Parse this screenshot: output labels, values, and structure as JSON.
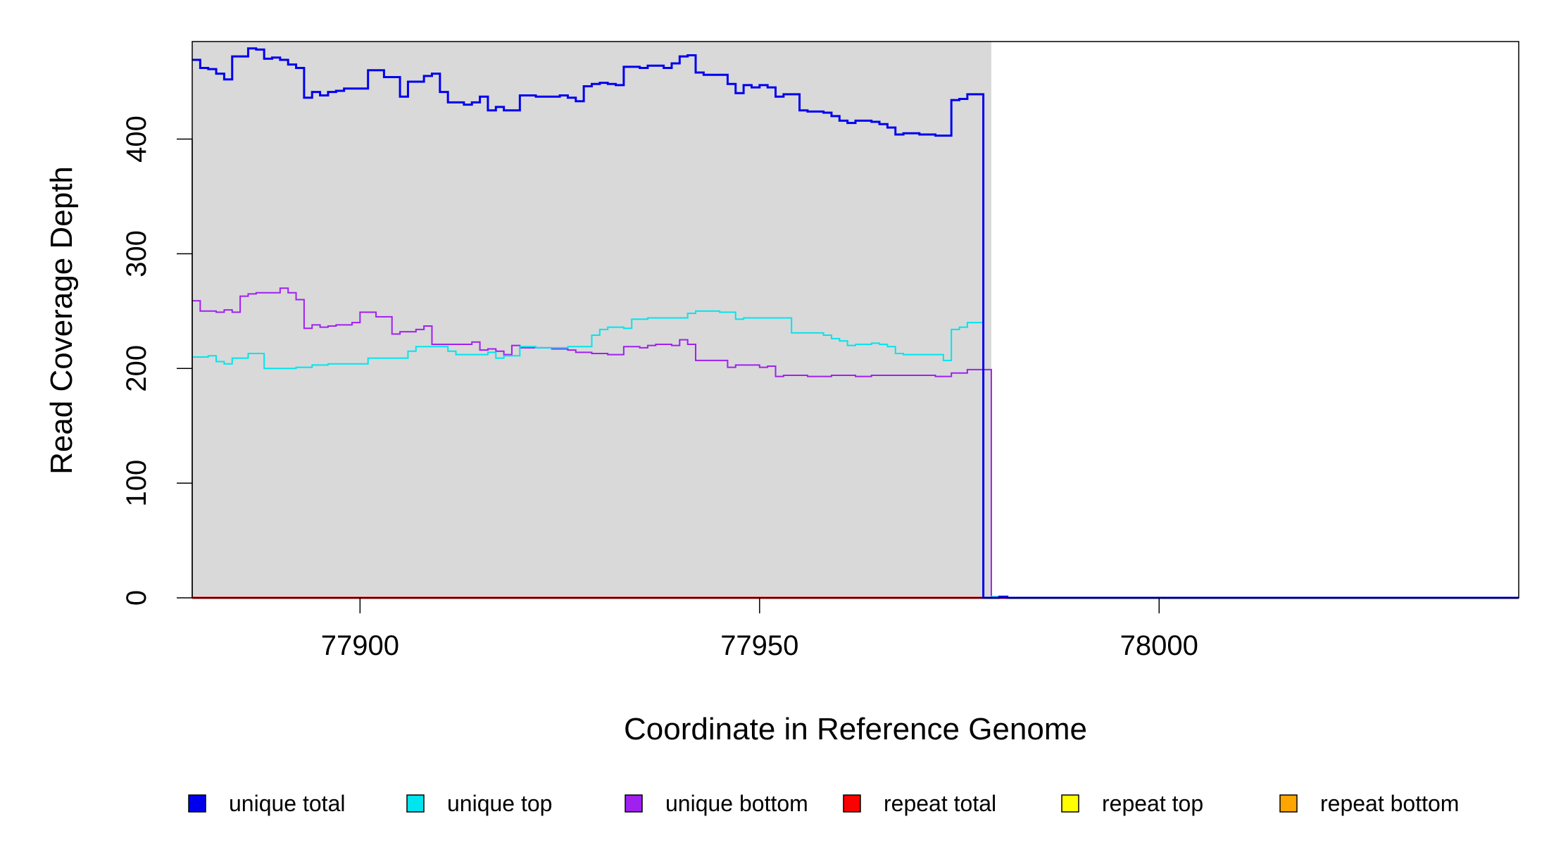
{
  "chart_data": {
    "type": "line",
    "title": "",
    "xlabel": "Coordinate in Reference Genome",
    "ylabel": "Read Coverage Depth",
    "xlim": [
      77879,
      78045
    ],
    "ylim": [
      0,
      485
    ],
    "x_ticks": [
      77900,
      77950,
      78000
    ],
    "x_tick_labels": [
      "77900",
      "77950",
      "78000"
    ],
    "y_ticks": [
      0,
      100,
      200,
      300,
      400
    ],
    "y_tick_labels": [
      "0",
      "100",
      "200",
      "300",
      "400"
    ],
    "grid": false,
    "shaded_region": {
      "x_start": 77879,
      "x_end": 77979,
      "color": "#d9d9d9"
    },
    "legend_position": "bottom",
    "series": [
      {
        "name": "unique total",
        "color": "#0000ee",
        "x": [
          77879,
          77880,
          77881,
          77882,
          77883,
          77884,
          77885,
          77886,
          77887,
          77888,
          77889,
          77890,
          77891,
          77892,
          77893,
          77894,
          77895,
          77896,
          77897,
          77898,
          77899,
          77900,
          77901,
          77902,
          77903,
          77904,
          77905,
          77906,
          77907,
          77908,
          77909,
          77910,
          77911,
          77912,
          77913,
          77914,
          77915,
          77916,
          77917,
          77918,
          77919,
          77920,
          77921,
          77922,
          77923,
          77924,
          77925,
          77926,
          77927,
          77928,
          77929,
          77930,
          77931,
          77932,
          77933,
          77934,
          77935,
          77936,
          77937,
          77938,
          77939,
          77940,
          77941,
          77942,
          77943,
          77944,
          77945,
          77946,
          77947,
          77948,
          77949,
          77950,
          77951,
          77952,
          77953,
          77954,
          77955,
          77956,
          77957,
          77958,
          77959,
          77960,
          77961,
          77962,
          77963,
          77964,
          77965,
          77966,
          77967,
          77968,
          77969,
          77970,
          77971,
          77972,
          77973,
          77974,
          77975,
          77976,
          77977,
          77978,
          77979,
          77980,
          77981,
          78045
        ],
        "y": [
          469,
          462,
          461,
          457,
          452,
          472,
          472,
          479,
          478,
          470,
          471,
          469,
          465,
          462,
          436,
          441,
          438,
          441,
          442,
          444,
          444,
          444,
          460,
          460,
          454,
          454,
          437,
          450,
          450,
          455,
          457,
          441,
          432,
          432,
          430,
          432,
          437,
          425,
          428,
          425,
          425,
          438,
          438,
          437,
          437,
          437,
          438,
          436,
          433,
          446,
          448,
          449,
          448,
          447,
          463,
          463,
          462,
          464,
          464,
          462,
          466,
          472,
          473,
          458,
          456,
          456,
          456,
          448,
          440,
          447,
          445,
          447,
          445,
          437,
          439,
          439,
          425,
          424,
          424,
          423,
          420,
          416,
          414,
          416,
          416,
          415,
          413,
          410,
          404,
          405,
          405,
          404,
          404,
          403,
          403,
          434,
          435,
          439,
          439,
          0,
          0,
          1,
          0,
          0
        ]
      },
      {
        "name": "unique top",
        "color": "#00e5ee",
        "x": [
          77879,
          77880,
          77881,
          77882,
          77883,
          77884,
          77885,
          77886,
          77887,
          77888,
          77889,
          77890,
          77891,
          77892,
          77893,
          77894,
          77895,
          77896,
          77897,
          77898,
          77899,
          77900,
          77901,
          77902,
          77903,
          77904,
          77905,
          77906,
          77907,
          77908,
          77909,
          77910,
          77911,
          77912,
          77913,
          77914,
          77915,
          77916,
          77917,
          77918,
          77919,
          77920,
          77921,
          77922,
          77923,
          77924,
          77925,
          77926,
          77927,
          77928,
          77929,
          77930,
          77931,
          77932,
          77933,
          77934,
          77935,
          77936,
          77937,
          77938,
          77939,
          77940,
          77941,
          77942,
          77943,
          77944,
          77945,
          77946,
          77947,
          77948,
          77949,
          77950,
          77951,
          77952,
          77953,
          77954,
          77955,
          77956,
          77957,
          77958,
          77959,
          77960,
          77961,
          77962,
          77963,
          77964,
          77965,
          77966,
          77967,
          77968,
          77969,
          77970,
          77971,
          77972,
          77973,
          77974,
          77975,
          77976,
          77977,
          77978,
          77979,
          77980,
          77981,
          78045
        ],
        "y": [
          210,
          210,
          211,
          206,
          204,
          209,
          209,
          213,
          213,
          200,
          200,
          200,
          200,
          201,
          201,
          203,
          203,
          204,
          204,
          204,
          204,
          204,
          209,
          209,
          209,
          209,
          209,
          215,
          219,
          219,
          219,
          219,
          215,
          212,
          212,
          212,
          212,
          214,
          209,
          211,
          211,
          219,
          219,
          218,
          218,
          218,
          218,
          219,
          219,
          219,
          229,
          234,
          236,
          236,
          235,
          243,
          243,
          244,
          244,
          244,
          244,
          244,
          248,
          250,
          250,
          250,
          249,
          249,
          243,
          244,
          244,
          244,
          244,
          244,
          244,
          231,
          231,
          231,
          231,
          229,
          226,
          224,
          220,
          221,
          221,
          222,
          221,
          219,
          213,
          212,
          212,
          212,
          212,
          212,
          207,
          234,
          236,
          240,
          240,
          0,
          1,
          1,
          0,
          0
        ]
      },
      {
        "name": "unique bottom",
        "color": "#a020f0",
        "x": [
          77879,
          77880,
          77881,
          77882,
          77883,
          77884,
          77885,
          77886,
          77887,
          77888,
          77889,
          77890,
          77891,
          77892,
          77893,
          77894,
          77895,
          77896,
          77897,
          77898,
          77899,
          77900,
          77901,
          77902,
          77903,
          77904,
          77905,
          77906,
          77907,
          77908,
          77909,
          77910,
          77911,
          77912,
          77913,
          77914,
          77915,
          77916,
          77917,
          77918,
          77919,
          77920,
          77921,
          77922,
          77923,
          77924,
          77925,
          77926,
          77927,
          77928,
          77929,
          77930,
          77931,
          77932,
          77933,
          77934,
          77935,
          77936,
          77937,
          77938,
          77939,
          77940,
          77941,
          77942,
          77943,
          77944,
          77945,
          77946,
          77947,
          77948,
          77949,
          77950,
          77951,
          77952,
          77953,
          77954,
          77955,
          77956,
          77957,
          77958,
          77959,
          77960,
          77961,
          77962,
          77963,
          77964,
          77965,
          77966,
          77967,
          77968,
          77969,
          77970,
          77971,
          77972,
          77973,
          77974,
          77975,
          77976,
          77977,
          77978,
          77979,
          78045
        ],
        "y": [
          259,
          250,
          250,
          249,
          251,
          249,
          263,
          265,
          266,
          266,
          266,
          270,
          266,
          260,
          235,
          238,
          236,
          237,
          238,
          238,
          240,
          249,
          249,
          245,
          245,
          230,
          232,
          232,
          234,
          237,
          221,
          221,
          221,
          221,
          221,
          223,
          216,
          217,
          215,
          212,
          220,
          218,
          218,
          218,
          218,
          217,
          217,
          216,
          214,
          214,
          213,
          213,
          212,
          212,
          219,
          219,
          218,
          220,
          221,
          221,
          220,
          225,
          221,
          207,
          207,
          207,
          207,
          201,
          203,
          203,
          203,
          201,
          202,
          193,
          194,
          194,
          194,
          193,
          193,
          193,
          194,
          194,
          194,
          193,
          193,
          194,
          194,
          194,
          194,
          194,
          194,
          194,
          194,
          193,
          193,
          196,
          196,
          199,
          199,
          199,
          0,
          0
        ]
      },
      {
        "name": "repeat total",
        "color": "#ff0000",
        "x": [
          77879,
          78045
        ],
        "y": [
          0,
          0
        ]
      },
      {
        "name": "repeat top",
        "color": "#ffff00",
        "x": [
          77879,
          78045
        ],
        "y": [
          0,
          0
        ]
      },
      {
        "name": "repeat bottom",
        "color": "#ffa500",
        "x": [
          77879,
          78045
        ],
        "y": [
          0,
          0
        ]
      }
    ]
  }
}
